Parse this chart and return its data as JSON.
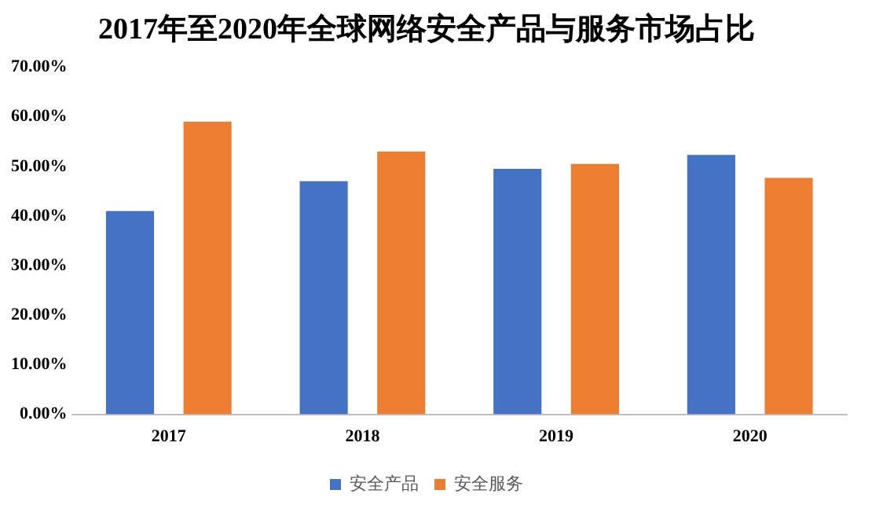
{
  "chart_data": {
    "type": "bar",
    "title": "2017年至2020年全球网络安全产品与服务市场占比",
    "categories": [
      "2017",
      "2018",
      "2019",
      "2020"
    ],
    "series": [
      {
        "name": "安全产品",
        "color": "#4472c4",
        "values": [
          41,
          47,
          49.5,
          52.3
        ]
      },
      {
        "name": "安全服务",
        "color": "#ed7d31",
        "values": [
          59,
          53,
          50.5,
          47.7
        ]
      }
    ],
    "ylim": [
      0,
      70
    ],
    "yticks": [
      {
        "value": 0,
        "label": "0.00%"
      },
      {
        "value": 10,
        "label": "10.00%"
      },
      {
        "value": 20,
        "label": "20.00%"
      },
      {
        "value": 30,
        "label": "30.00%"
      },
      {
        "value": 40,
        "label": "40.00%"
      },
      {
        "value": 50,
        "label": "50.00%"
      },
      {
        "value": 60,
        "label": "60.00%"
      },
      {
        "value": 70,
        "label": "70.00%"
      }
    ],
    "grid": false,
    "legend": "bottom"
  }
}
